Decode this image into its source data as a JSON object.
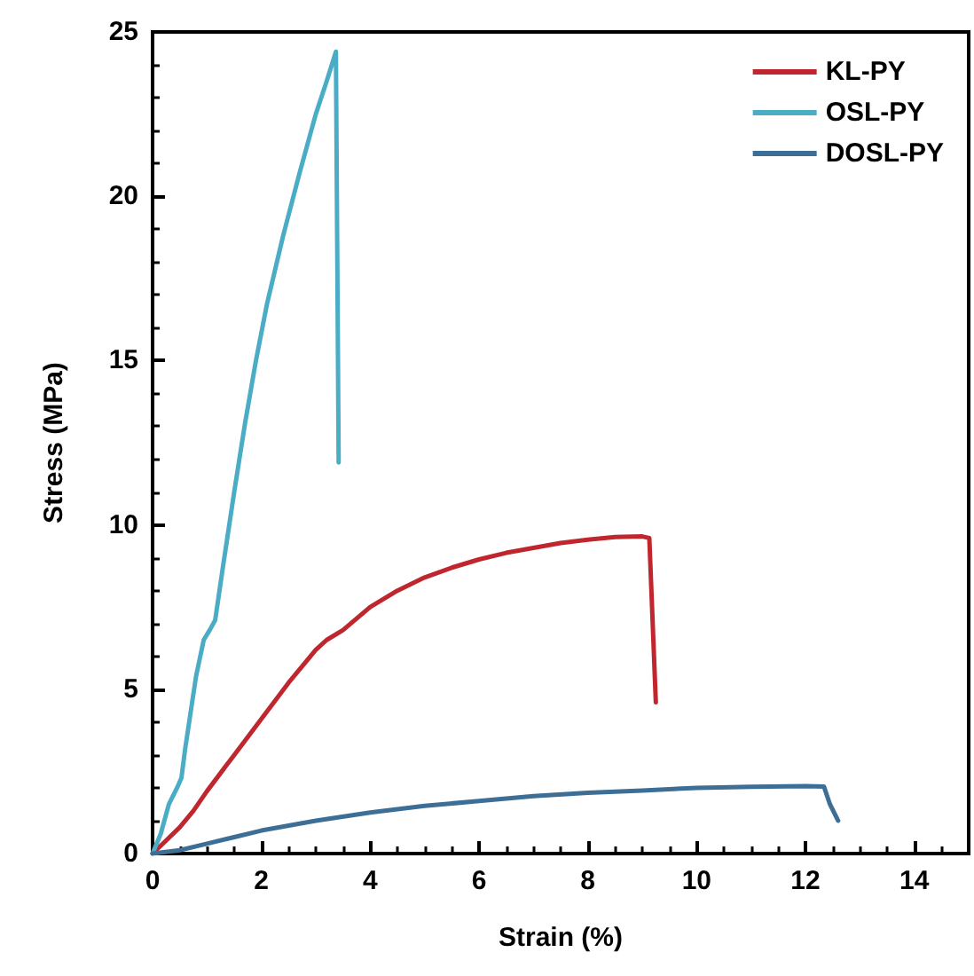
{
  "chart_data": {
    "type": "line",
    "xlabel": "Strain (%)",
    "ylabel": "Stress (MPa)",
    "xlim": [
      0,
      15
    ],
    "xticks": [
      0,
      2,
      4,
      6,
      8,
      10,
      12,
      14
    ],
    "ylim": [
      0,
      25
    ],
    "yticks": [
      0,
      5,
      10,
      15,
      20,
      25
    ],
    "grid": false,
    "legend": "top right",
    "marker": "none",
    "line_style": "solid",
    "series": [
      {
        "name": "KL-PY",
        "color": "#c0262d",
        "x": [
          0,
          0.25,
          0.5,
          0.75,
          1,
          1.5,
          2,
          2.5,
          3,
          3.2,
          3.5,
          4,
          4.5,
          5,
          5.5,
          6,
          6.5,
          7,
          7.5,
          8,
          8.5,
          9,
          9.13,
          9.25
        ],
        "values": [
          0,
          0.4,
          0.8,
          1.3,
          1.9,
          3.0,
          4.1,
          5.2,
          6.2,
          6.5,
          6.8,
          7.5,
          8.0,
          8.4,
          8.7,
          8.95,
          9.15,
          9.3,
          9.45,
          9.55,
          9.63,
          9.65,
          9.6,
          4.6
        ]
      },
      {
        "name": "OSL-PY",
        "color": "#4bacc6",
        "x": [
          0,
          0.15,
          0.3,
          0.45,
          0.53,
          0.6,
          0.7,
          0.8,
          0.94,
          1.05,
          1.15,
          1.3,
          1.5,
          1.7,
          1.9,
          2.1,
          2.4,
          2.7,
          3.0,
          3.2,
          3.37,
          3.42
        ],
        "values": [
          0,
          0.6,
          1.5,
          2.0,
          2.3,
          3.2,
          4.3,
          5.4,
          6.5,
          6.8,
          7.1,
          8.8,
          11.0,
          13.1,
          15.0,
          16.7,
          18.8,
          20.7,
          22.5,
          23.5,
          24.4,
          11.9
        ]
      },
      {
        "name": "DOSL-PY",
        "color": "#3c6e96",
        "x": [
          0,
          0.5,
          1,
          1.5,
          2,
          3,
          4,
          5,
          6,
          7,
          8,
          9,
          10,
          11,
          12,
          12.34,
          12.45,
          12.6
        ],
        "values": [
          0,
          0.1,
          0.3,
          0.5,
          0.7,
          1.0,
          1.25,
          1.45,
          1.6,
          1.75,
          1.85,
          1.92,
          2.0,
          2.03,
          2.05,
          2.04,
          1.5,
          1.0
        ]
      }
    ]
  }
}
